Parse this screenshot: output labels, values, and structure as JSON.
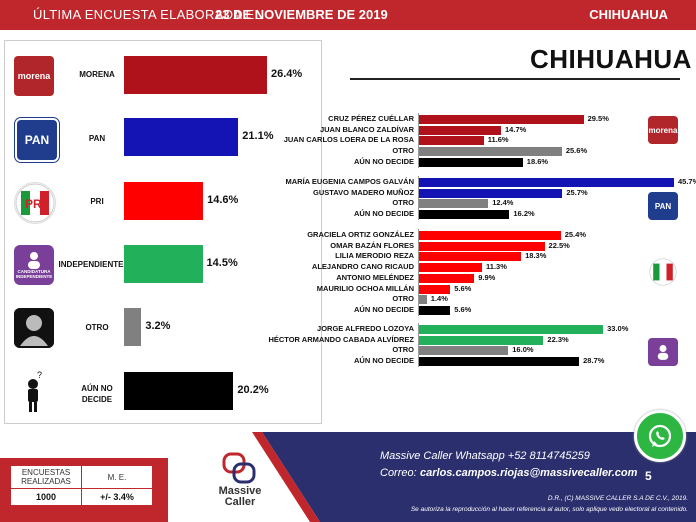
{
  "header": {
    "lead": "ÚLTIMA ENCUESTA ELABORADA EL",
    "date": "23 DE NOVIEMBRE DE 2019",
    "state": "CHIHUAHUA"
  },
  "main_title": "CHIHUAHUA",
  "logos": {
    "morena": "morena",
    "pan": "PAN",
    "pri": "PRI",
    "independiente": "CANDIDATURA INDEPENDIENTE",
    "aun_no_decide_icon": "?"
  },
  "colors": {
    "morena": "#b0121b",
    "pan": "#1414b4",
    "pri": "#ff0000",
    "independiente": "#22b05a",
    "otro": "#808080",
    "aun_no_decide": "#000000",
    "header": "#c0272d",
    "footer": "#2b2f6e"
  },
  "chart_data": [
    {
      "type": "bar",
      "orientation": "horizontal",
      "categories": [
        "MORENA",
        "PAN",
        "PRI",
        "INDEPENDIENTE",
        "OTRO",
        "AÚN NO DECIDE"
      ],
      "values": [
        26.4,
        21.1,
        14.6,
        14.5,
        3.2,
        20.2
      ],
      "value_labels": [
        "26.4%",
        "21.1%",
        "14.6%",
        "14.5%",
        "3.2%",
        "20.2%"
      ],
      "category_labels": [
        "MORENA",
        "PAN",
        "PRI",
        "INDEPENDIENTE",
        "OTRO",
        "AÚN NO\nDECIDE"
      ]
    },
    {
      "type": "bar",
      "orientation": "horizontal",
      "groups": [
        {
          "party": "morena",
          "categories": [
            "CRUZ PÉREZ CUÉLLAR",
            "JUAN BLANCO ZALDÍVAR",
            "JUAN CARLOS LOERA DE LA ROSA",
            "OTRO",
            "AÚN NO DECIDE"
          ],
          "values": [
            29.5,
            14.7,
            11.6,
            25.6,
            18.6
          ],
          "value_labels": [
            "29.5%",
            "14.7%",
            "11.6%",
            "25.6%",
            "18.6%"
          ]
        },
        {
          "party": "pan",
          "categories": [
            "MARÍA EUGENIA CAMPOS GALVÁN",
            "GUSTAVO MADERO MUÑOZ",
            "OTRO",
            "AÚN NO DECIDE"
          ],
          "values": [
            45.7,
            25.7,
            12.4,
            16.2
          ],
          "value_labels": [
            "45.7%",
            "25.7%",
            "12.4%",
            "16.2%"
          ]
        },
        {
          "party": "pri",
          "categories": [
            "GRACIELA ORTIZ GONZÁLEZ",
            "OMAR BAZÁN FLORES",
            "LILIA MERODIO REZA",
            "ALEJANDRO CANO RICAUD",
            "ANTONIO MELÉNDEZ",
            "MAURILIO OCHOA MILLÁN",
            "OTRO",
            "AÚN NO DECIDE"
          ],
          "values": [
            25.4,
            22.5,
            18.3,
            11.3,
            9.9,
            5.6,
            1.4,
            5.6
          ],
          "value_labels": [
            "25.4%",
            "22.5%",
            "18.3%",
            "11.3%",
            "9.9%",
            "5.6%",
            "1.4%",
            "5.6%"
          ]
        },
        {
          "party": "independiente",
          "categories": [
            "JORGE ALFREDO LOZOYA",
            "HÉCTOR ARMANDO CABADA ALVÍDREZ",
            "OTRO",
            "AÚN NO DECIDE"
          ],
          "values": [
            33.0,
            22.3,
            16.0,
            28.7
          ],
          "value_labels": [
            "33.0%",
            "22.3%",
            "16.0%",
            "28.7%"
          ]
        }
      ]
    }
  ],
  "footer": {
    "table_head_1": "ENCUESTAS REALIZADAS",
    "table_head_2": "M. E.",
    "table_val_1": "1000",
    "table_val_2": "+/- 3.4%",
    "brand": "Massive Caller",
    "whatsapp_line": "Massive Caller Whatsapp   +52 8114745259",
    "email_label": "Correo:",
    "email": "carlos.campos.riojas@massivecaller.com",
    "page": "5",
    "copyright_1": "D.R., (C) MASSIVE CALLER S.A DE C.V., 2019.",
    "copyright_2": "Se autoriza la reproducción al hacer referencia al autor, solo aplique vedo electoral al contenido."
  }
}
